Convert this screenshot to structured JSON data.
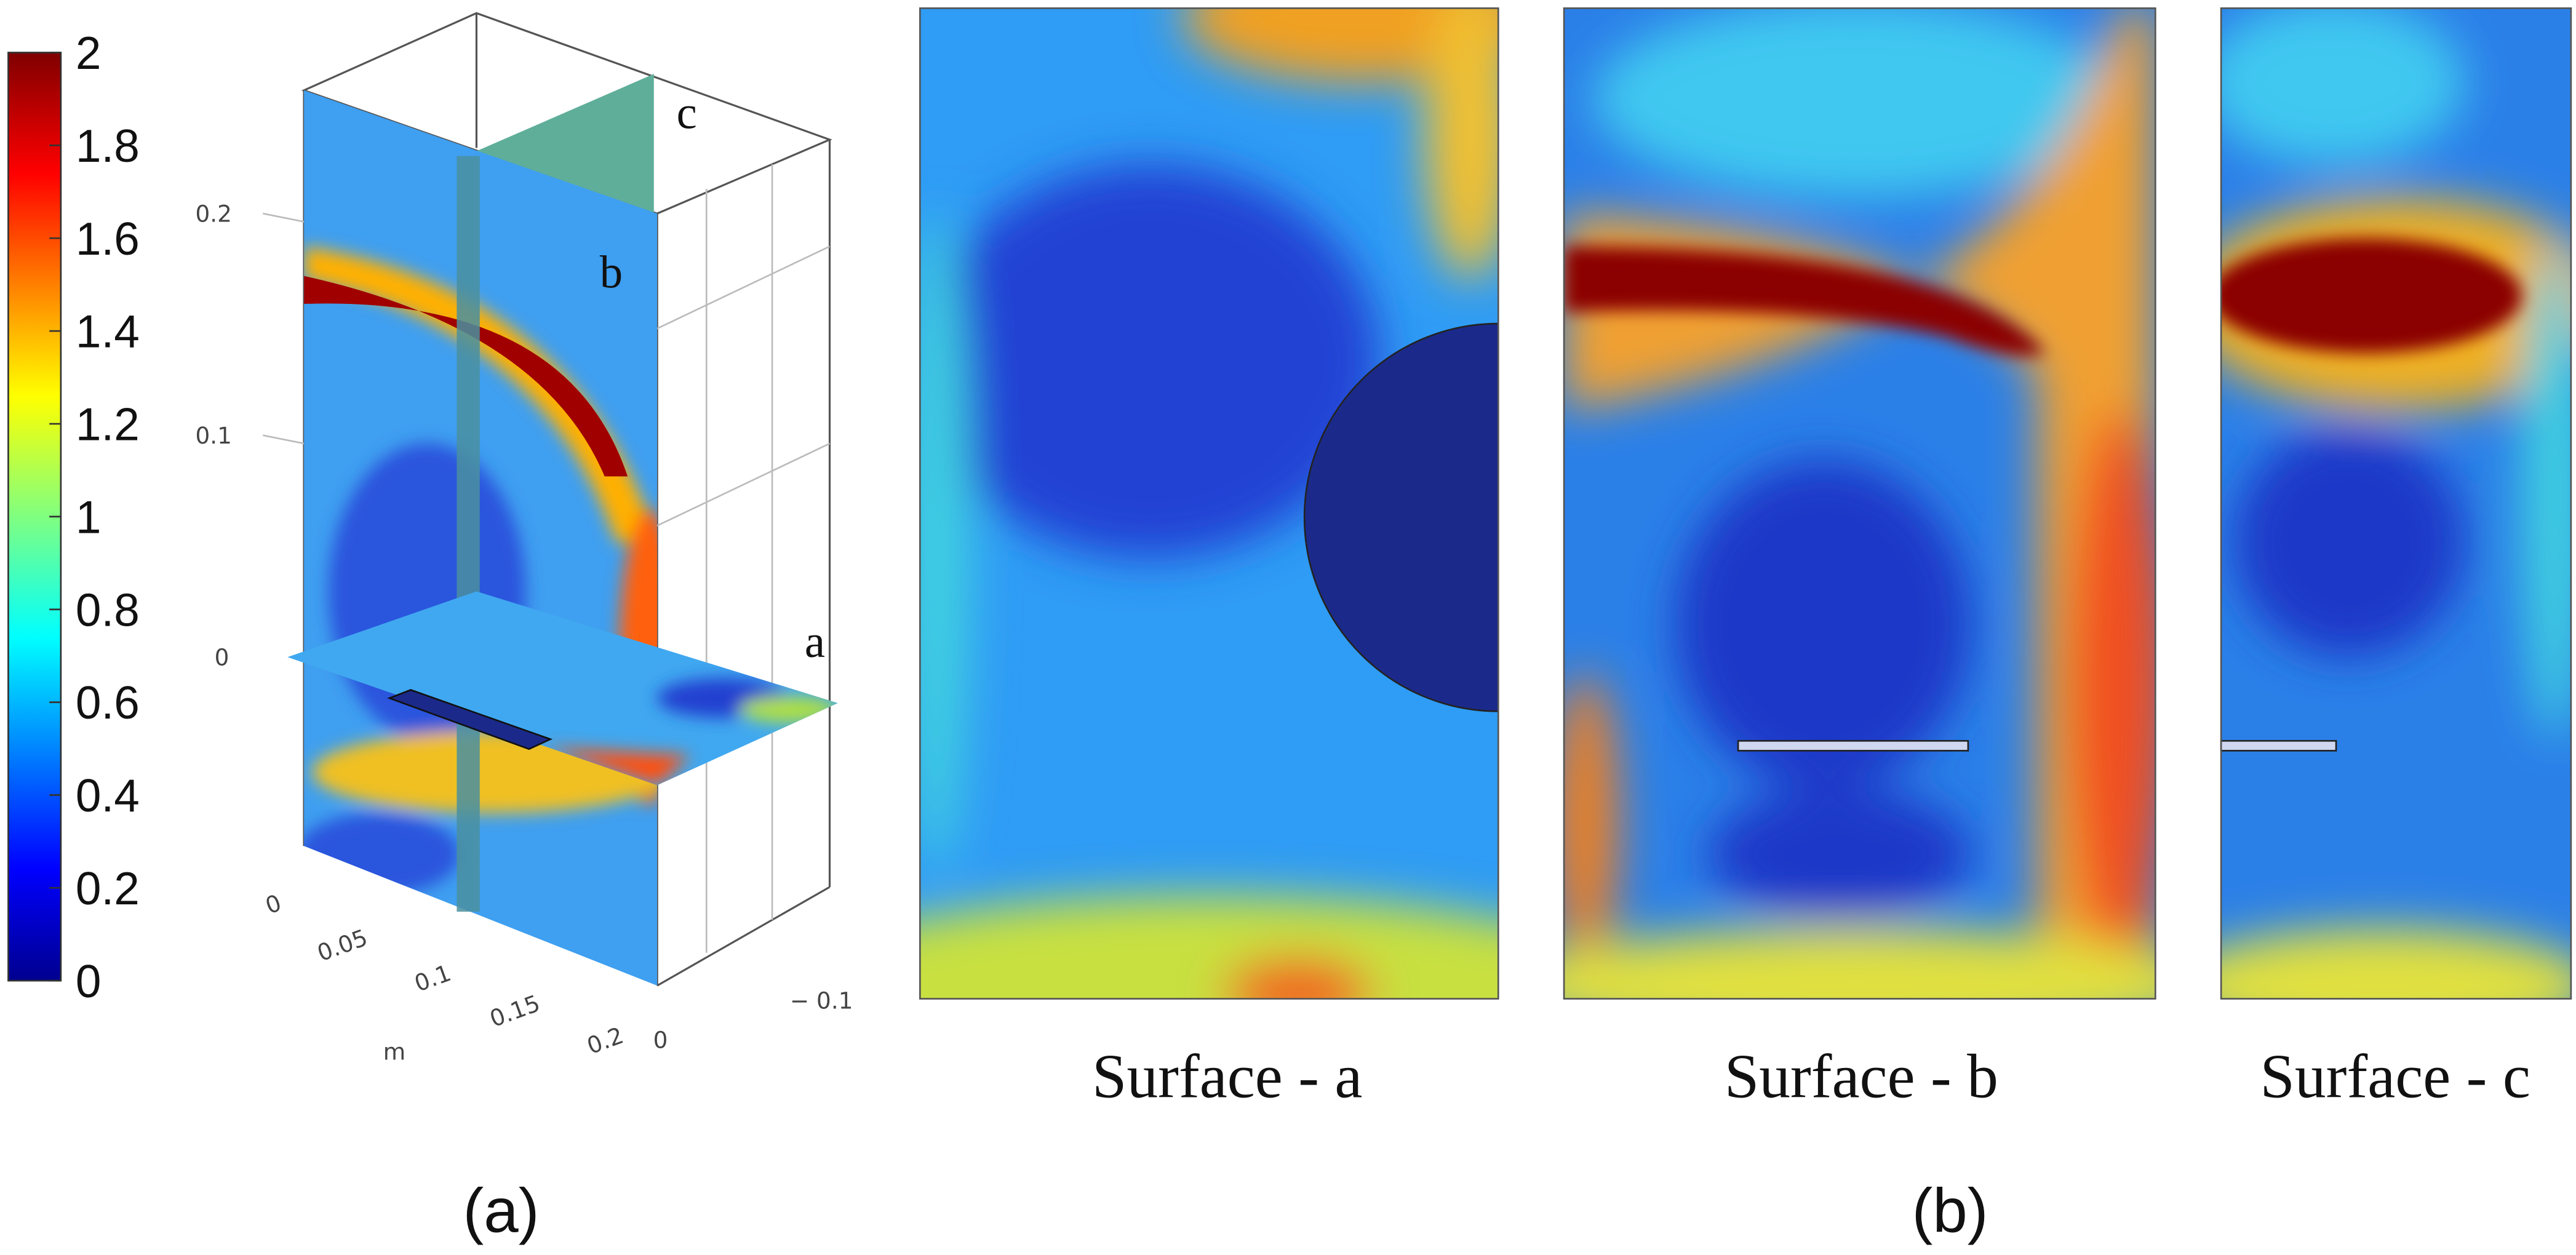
{
  "colorbar": {
    "ticks": [
      0,
      0.2,
      0.4,
      0.6,
      0.8,
      1,
      1.2,
      1.4,
      1.6,
      1.8,
      2
    ]
  },
  "view3d": {
    "z_ticks": [
      "0.2",
      "0.1",
      "0"
    ],
    "x_ticks": [
      "0",
      "0.05",
      "0.1",
      "0.15",
      "0.2"
    ],
    "x_unit": "m",
    "y_ticks": [
      "0",
      "− 0.1"
    ],
    "surface_labels": [
      "a",
      "b",
      "c"
    ]
  },
  "panels": [
    "Surface - a",
    "Surface - b",
    "Surface - c"
  ],
  "subfigures": [
    "(a)",
    "(b)"
  ]
}
